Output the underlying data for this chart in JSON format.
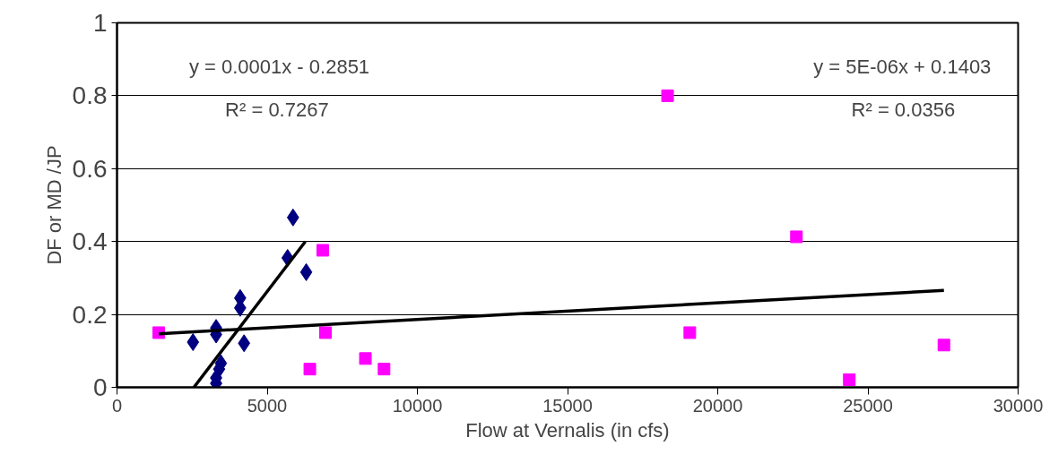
{
  "chart_data": {
    "type": "scatter",
    "xlabel": "Flow at Vernalis (in cfs)",
    "ylabel": "DF or MD /JP",
    "xlim": [
      0,
      30000
    ],
    "ylim": [
      0,
      1
    ],
    "xticks": [
      0,
      5000,
      10000,
      15000,
      20000,
      25000,
      30000
    ],
    "yticks": [
      0,
      0.2,
      0.4,
      0.6,
      0.8,
      1
    ],
    "grid": "y",
    "series": [
      {
        "marker": "diamond",
        "color": "#000080",
        "x": [
          5860,
          5680,
          6300,
          4100,
          4100,
          3300,
          3300,
          2530,
          4230,
          3460,
          3400,
          3300,
          3300
        ],
        "values": [
          0.466,
          0.355,
          0.316,
          0.245,
          0.218,
          0.163,
          0.145,
          0.124,
          0.121,
          0.066,
          0.05,
          0.026,
          0.011
        ]
      },
      {
        "marker": "square",
        "color": "#ff00ff",
        "x": [
          1390,
          6850,
          6940,
          6420,
          8270,
          8890,
          18330,
          22620,
          19070,
          24380,
          27530
        ],
        "values": [
          0.15,
          0.376,
          0.15,
          0.05,
          0.079,
          0.05,
          0.8,
          0.413,
          0.15,
          0.021,
          0.116
        ]
      },
      {
        "type": "line",
        "color": "#000000",
        "x": [
          2560,
          6270
        ],
        "values": [
          0.0,
          0.4
        ]
      },
      {
        "type": "line",
        "color": "#000000",
        "x": [
          1390,
          27530
        ],
        "values": [
          0.147,
          0.266
        ]
      }
    ],
    "annotations": [
      "y = 0.0001x - 0.2851",
      "R² = 0.7267",
      "y = 5E-06x + 0.1403",
      "R² = 0.0356"
    ]
  }
}
